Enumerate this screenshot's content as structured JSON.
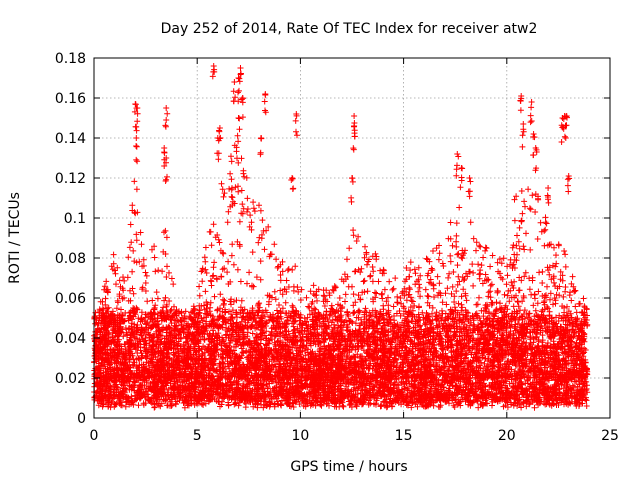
{
  "chart_data": {
    "type": "scatter",
    "title": "Day 252 of 2014, Rate Of TEC Index for receiver atw2",
    "xlabel": "GPS time / hours",
    "ylabel": "ROTI / TECUs",
    "xlim": [
      0,
      25
    ],
    "ylim": [
      0,
      0.18
    ],
    "xticks": [
      0,
      5,
      10,
      15,
      20,
      25
    ],
    "yticks": [
      0,
      0.02,
      0.04,
      0.06,
      0.08,
      0.1,
      0.12,
      0.14,
      0.16,
      0.18
    ],
    "xtick_labels": [
      "0",
      "5",
      "10",
      "15",
      "20",
      "25"
    ],
    "ytick_labels": [
      "0",
      "0.02",
      "0.04",
      "0.06",
      "0.08",
      "0.1",
      "0.12",
      "0.14",
      "0.16",
      "0.18"
    ],
    "grid": true,
    "marker": "+",
    "color": "#ff0000",
    "density_profile": [
      [
        0.0,
        0.05
      ],
      [
        0.5,
        0.065
      ],
      [
        1.0,
        0.085
      ],
      [
        1.5,
        0.07
      ],
      [
        2.0,
        0.125
      ],
      [
        2.5,
        0.075
      ],
      [
        3.0,
        0.09
      ],
      [
        3.5,
        0.095
      ],
      [
        4.0,
        0.055
      ],
      [
        4.5,
        0.05
      ],
      [
        5.0,
        0.06
      ],
      [
        5.5,
        0.095
      ],
      [
        6.0,
        0.11
      ],
      [
        6.5,
        0.13
      ],
      [
        7.0,
        0.145
      ],
      [
        7.5,
        0.115
      ],
      [
        8.0,
        0.11
      ],
      [
        8.5,
        0.095
      ],
      [
        9.0,
        0.08
      ],
      [
        9.5,
        0.075
      ],
      [
        10.0,
        0.08
      ],
      [
        10.5,
        0.07
      ],
      [
        11.0,
        0.065
      ],
      [
        11.5,
        0.065
      ],
      [
        12.0,
        0.07
      ],
      [
        12.5,
        0.095
      ],
      [
        13.0,
        0.09
      ],
      [
        13.5,
        0.085
      ],
      [
        14.0,
        0.075
      ],
      [
        14.5,
        0.07
      ],
      [
        15.0,
        0.075
      ],
      [
        15.5,
        0.08
      ],
      [
        16.0,
        0.08
      ],
      [
        16.5,
        0.085
      ],
      [
        17.0,
        0.09
      ],
      [
        17.5,
        0.105
      ],
      [
        18.0,
        0.11
      ],
      [
        18.5,
        0.095
      ],
      [
        19.0,
        0.09
      ],
      [
        19.5,
        0.08
      ],
      [
        20.0,
        0.08
      ],
      [
        20.5,
        0.12
      ],
      [
        21.0,
        0.12
      ],
      [
        21.5,
        0.115
      ],
      [
        22.0,
        0.1
      ],
      [
        22.5,
        0.09
      ],
      [
        23.0,
        0.085
      ],
      [
        23.5,
        0.07
      ],
      [
        23.9,
        0.06
      ]
    ],
    "highlights": [
      [
        2.0,
        0.157
      ],
      [
        2.1,
        0.155
      ],
      [
        2.05,
        0.14
      ],
      [
        3.5,
        0.155
      ],
      [
        3.4,
        0.135
      ],
      [
        3.5,
        0.13
      ],
      [
        5.8,
        0.176
      ],
      [
        6.1,
        0.145
      ],
      [
        6.0,
        0.14
      ],
      [
        6.8,
        0.168
      ],
      [
        7.0,
        0.17
      ],
      [
        7.1,
        0.175
      ],
      [
        7.2,
        0.16
      ],
      [
        7.0,
        0.15
      ],
      [
        8.3,
        0.162
      ],
      [
        8.1,
        0.14
      ],
      [
        9.8,
        0.152
      ],
      [
        9.6,
        0.12
      ],
      [
        12.6,
        0.151
      ],
      [
        12.6,
        0.146
      ],
      [
        12.5,
        0.12
      ],
      [
        17.6,
        0.132
      ],
      [
        17.8,
        0.125
      ],
      [
        18.2,
        0.12
      ],
      [
        20.7,
        0.161
      ],
      [
        21.2,
        0.158
      ],
      [
        20.8,
        0.147
      ],
      [
        21.3,
        0.142
      ],
      [
        21.4,
        0.135
      ],
      [
        22.8,
        0.151
      ],
      [
        22.9,
        0.151
      ],
      [
        22.7,
        0.15
      ],
      [
        23.0,
        0.121
      ],
      [
        22.0,
        0.115
      ]
    ],
    "time_range_hours": [
      0.0,
      23.9
    ],
    "typical_range": [
      0.005,
      0.05
    ]
  }
}
